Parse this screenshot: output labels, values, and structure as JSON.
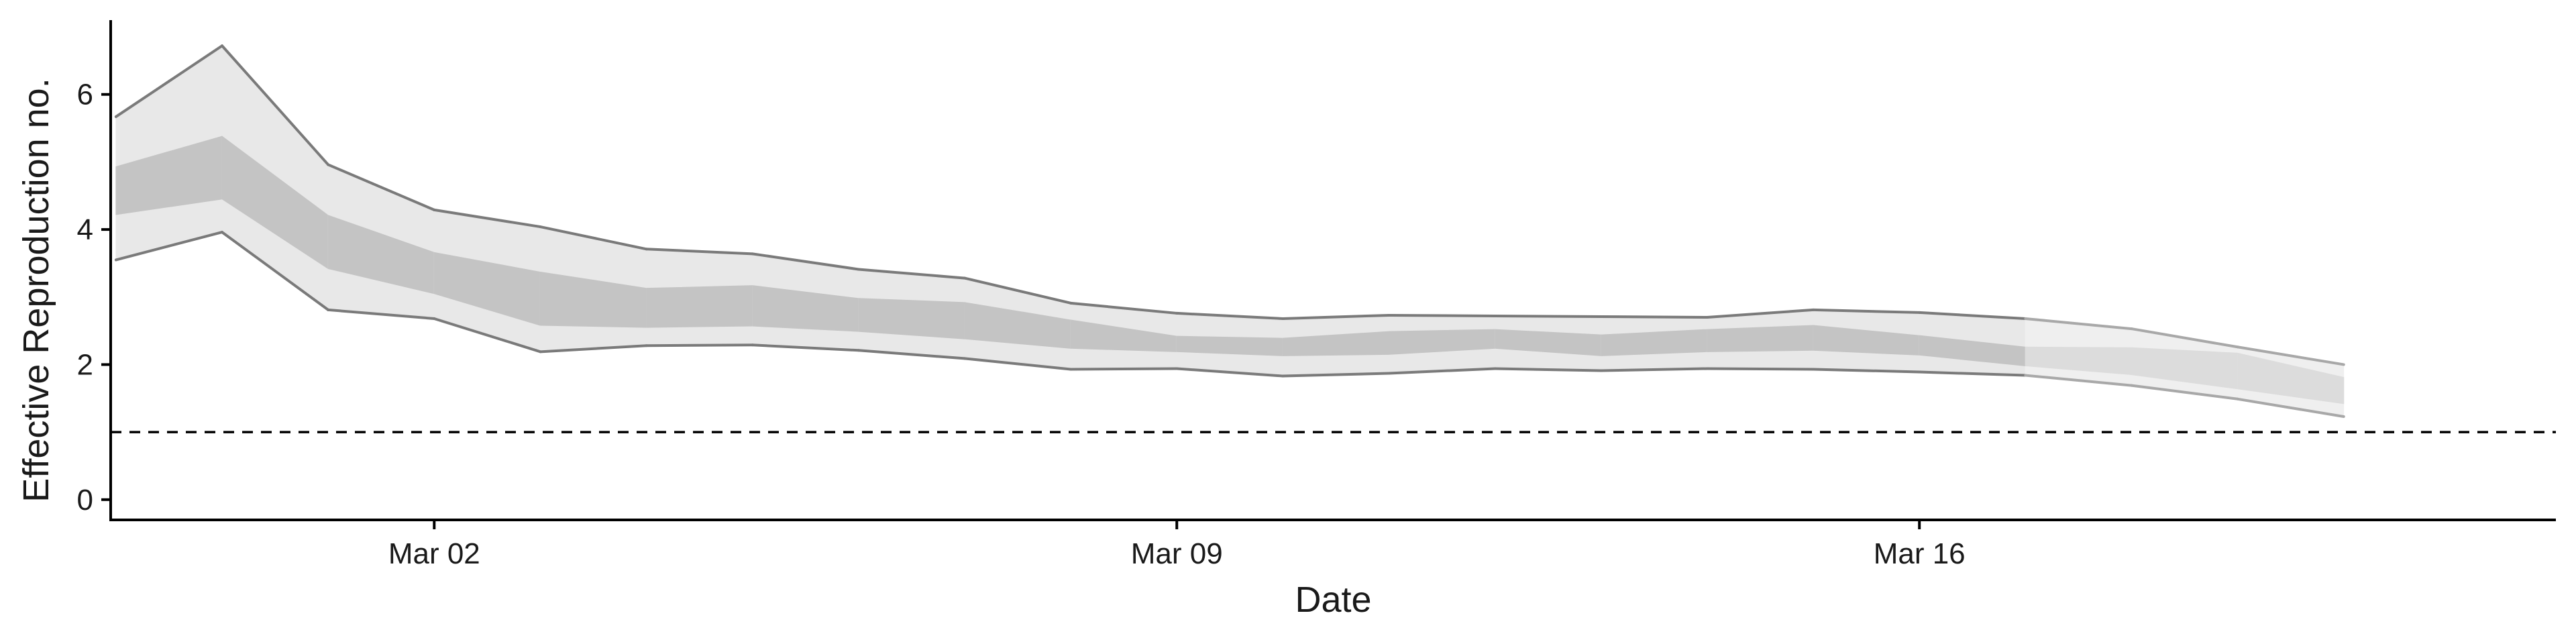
{
  "chart_data": {
    "type": "area",
    "xlabel": "Date",
    "ylabel": "Effective Reproduction no.",
    "x_tick_labels": [
      "Mar 02",
      "Mar 09",
      "Mar 16"
    ],
    "x_tick_days": [
      2,
      9,
      16
    ],
    "y_ticks": [
      0,
      2,
      4,
      6
    ],
    "ylim": [
      -0.3,
      7.1
    ],
    "xlim_days": [
      -1.05,
      22.0
    ],
    "reference_line": {
      "y": 1,
      "style": "dashed"
    },
    "grid": false,
    "legend": "none",
    "colors": {
      "outer_band": "#e8e8e8",
      "inner_band": "#c4c4c4",
      "bound_line": "#7a7a7a",
      "axis": "#000000"
    },
    "series": [
      {
        "date": "Feb 28",
        "lower_90": 3.55,
        "lower_50": 4.22,
        "upper_50": 4.93,
        "upper_90": 5.67
      },
      {
        "date": "Feb 29",
        "lower_90": 3.96,
        "lower_50": 4.45,
        "upper_50": 5.38,
        "upper_90": 6.72
      },
      {
        "date": "Mar 01",
        "lower_90": 2.81,
        "lower_50": 3.42,
        "upper_50": 4.21,
        "upper_90": 4.96
      },
      {
        "date": "Mar 02",
        "lower_90": 2.68,
        "lower_50": 3.05,
        "upper_50": 3.66,
        "upper_90": 4.29
      },
      {
        "date": "Mar 03",
        "lower_90": 2.19,
        "lower_50": 2.58,
        "upper_50": 3.37,
        "upper_90": 4.04
      },
      {
        "date": "Mar 04",
        "lower_90": 2.28,
        "lower_50": 2.55,
        "upper_50": 3.13,
        "upper_90": 3.71
      },
      {
        "date": "Mar 05",
        "lower_90": 2.29,
        "lower_50": 2.57,
        "upper_50": 3.17,
        "upper_90": 3.64
      },
      {
        "date": "Mar 06",
        "lower_90": 2.21,
        "lower_50": 2.49,
        "upper_50": 2.98,
        "upper_90": 3.41
      },
      {
        "date": "Mar 07",
        "lower_90": 2.09,
        "lower_50": 2.38,
        "upper_50": 2.92,
        "upper_90": 3.28
      },
      {
        "date": "Mar 08",
        "lower_90": 1.93,
        "lower_50": 2.24,
        "upper_50": 2.66,
        "upper_90": 2.91
      },
      {
        "date": "Mar 09",
        "lower_90": 1.94,
        "lower_50": 2.19,
        "upper_50": 2.42,
        "upper_90": 2.76
      },
      {
        "date": "Mar 10",
        "lower_90": 1.83,
        "lower_50": 2.13,
        "upper_50": 2.39,
        "upper_90": 2.68
      },
      {
        "date": "Mar 11",
        "lower_90": 1.87,
        "lower_50": 2.15,
        "upper_50": 2.49,
        "upper_90": 2.73
      },
      {
        "date": "Mar 12",
        "lower_90": 1.94,
        "lower_50": 2.24,
        "upper_50": 2.52,
        "upper_90": 2.72
      },
      {
        "date": "Mar 13",
        "lower_90": 1.91,
        "lower_50": 2.13,
        "upper_50": 2.44,
        "upper_90": 2.71
      },
      {
        "date": "Mar 14",
        "lower_90": 1.94,
        "lower_50": 2.19,
        "upper_50": 2.52,
        "upper_90": 2.7
      },
      {
        "date": "Mar 15",
        "lower_90": 1.93,
        "lower_50": 2.21,
        "upper_50": 2.58,
        "upper_90": 2.81
      },
      {
        "date": "Mar 16",
        "lower_90": 1.89,
        "lower_50": 2.14,
        "upper_50": 2.43,
        "upper_90": 2.77
      },
      {
        "date": "Mar 17",
        "lower_90": 1.84,
        "lower_50": 1.98,
        "upper_50": 2.26,
        "upper_90": 2.68
      },
      {
        "date": "Mar 18",
        "lower_90": 1.69,
        "lower_50": 1.85,
        "upper_50": 2.25,
        "upper_90": 2.53
      },
      {
        "date": "Mar 19",
        "lower_90": 1.49,
        "lower_50": 1.64,
        "upper_50": 2.17,
        "upper_90": 2.26
      },
      {
        "date": "Mar 20",
        "lower_90": 1.23,
        "lower_50": 1.42,
        "upper_50": 1.81,
        "upper_90": 2.0
      }
    ]
  }
}
